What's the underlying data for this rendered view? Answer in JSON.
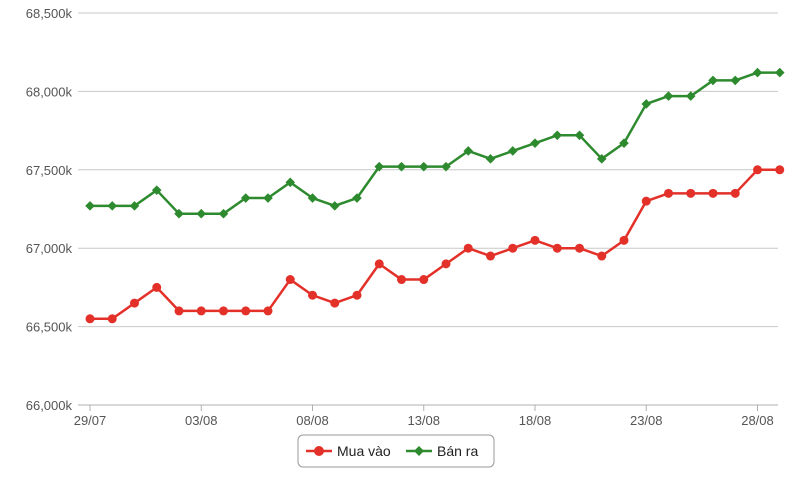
{
  "chart_data": {
    "type": "line",
    "ylim": [
      66000,
      68500
    ],
    "y_ticks": [
      "66,000k",
      "66,500k",
      "67,000k",
      "67,500k",
      "68,000k",
      "68,500k"
    ],
    "y_tick_values": [
      66000,
      66500,
      67000,
      67500,
      68000,
      68500
    ],
    "x": [
      "29/07",
      "30/07",
      "31/07",
      "01/08",
      "02/08",
      "03/08",
      "04/08",
      "05/08",
      "06/08",
      "07/08",
      "08/08",
      "09/08",
      "10/08",
      "11/08",
      "12/08",
      "13/08",
      "14/08",
      "15/08",
      "16/08",
      "17/08",
      "18/08",
      "19/08",
      "20/08",
      "21/08",
      "22/08",
      "23/08",
      "24/08",
      "25/08",
      "26/08",
      "27/08",
      "28/08",
      "29/08"
    ],
    "x_tick_labels": [
      "29/07",
      "03/08",
      "08/08",
      "13/08",
      "18/08",
      "23/08",
      "28/08"
    ],
    "x_tick_indices": [
      0,
      5,
      10,
      15,
      20,
      25,
      30
    ],
    "grid": true,
    "legend_position": "bottom-center",
    "series": [
      {
        "name": "Mua vào",
        "color": "#e3312a",
        "marker": "circle",
        "values": [
          66550,
          66550,
          66650,
          66750,
          66600,
          66600,
          66600,
          66600,
          66600,
          66800,
          66700,
          66650,
          66700,
          66900,
          66800,
          66800,
          66900,
          67000,
          66950,
          67000,
          67050,
          67000,
          67000,
          66950,
          67050,
          67300,
          67350,
          67350,
          67350,
          67350,
          67500,
          67500
        ]
      },
      {
        "name": "Bán ra",
        "color": "#2e8a2e",
        "marker": "diamond",
        "values": [
          67270,
          67270,
          67270,
          67370,
          67220,
          67220,
          67220,
          67320,
          67320,
          67420,
          67320,
          67270,
          67320,
          67520,
          67520,
          67520,
          67520,
          67620,
          67570,
          67620,
          67670,
          67720,
          67720,
          67570,
          67670,
          67920,
          67970,
          67970,
          68070,
          68070,
          68120,
          68120
        ]
      }
    ]
  }
}
